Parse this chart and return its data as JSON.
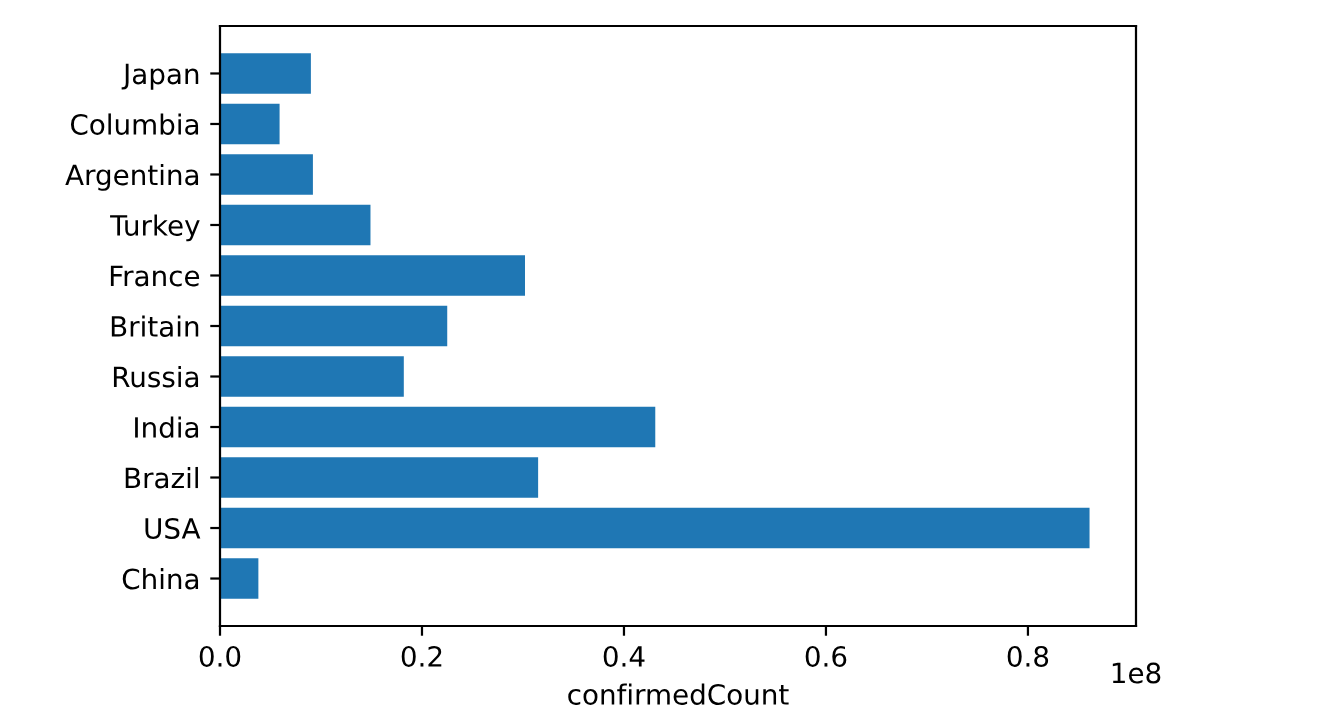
{
  "chart_data": {
    "type": "bar",
    "orientation": "horizontal",
    "xlabel": "confirmedCount",
    "categories": [
      "Japan",
      "Columbia",
      "Argentina",
      "Turkey",
      "France",
      "Britain",
      "Russia",
      "India",
      "Brazil",
      "USA",
      "China"
    ],
    "values": [
      0.09,
      0.059,
      0.092,
      0.149,
      0.302,
      0.225,
      0.182,
      0.431,
      0.315,
      0.861,
      0.038
    ],
    "color": "#1f77b4",
    "xlim": [
      0,
      0.907
    ],
    "xticks": [
      {
        "value": 0,
        "label": "0.0"
      },
      0.2,
      0.4,
      0.6,
      0.8
    ],
    "annotations": [
      "1e8"
    ],
    "grid": false,
    "legend": false
  }
}
